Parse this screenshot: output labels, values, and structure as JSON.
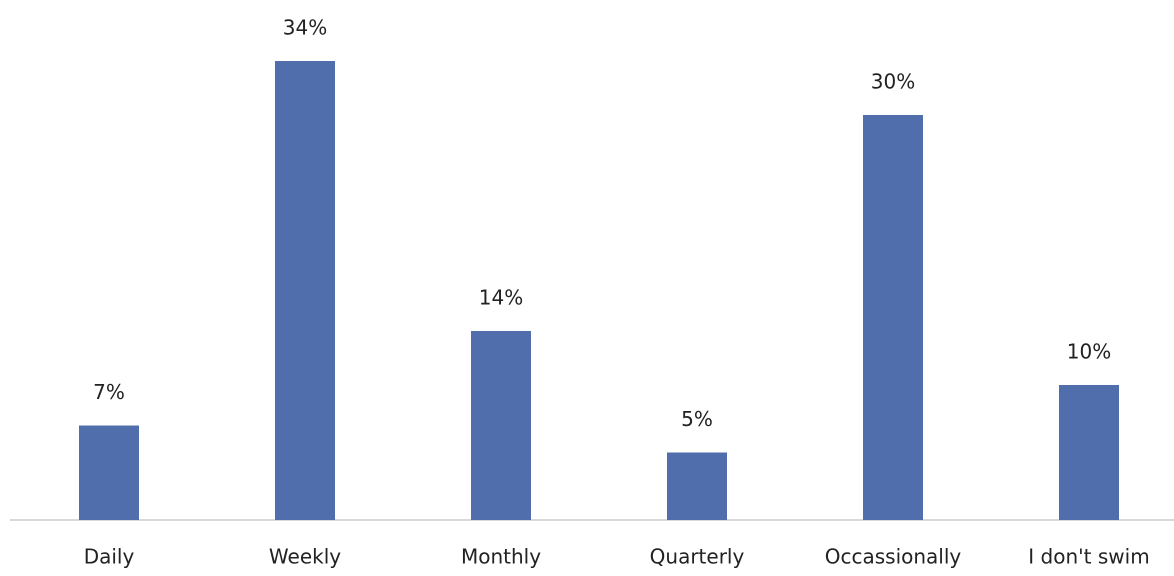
{
  "chart_data": {
    "type": "bar",
    "categories": [
      "Daily",
      "Weekly",
      "Monthly",
      "Quarterly",
      "Occassionally",
      "I don't swim"
    ],
    "values": [
      7,
      34,
      14,
      5,
      30,
      10
    ],
    "value_labels": [
      "7%",
      "34%",
      "14%",
      "5%",
      "30%",
      "10%"
    ],
    "color": "#4f6eab"
  }
}
